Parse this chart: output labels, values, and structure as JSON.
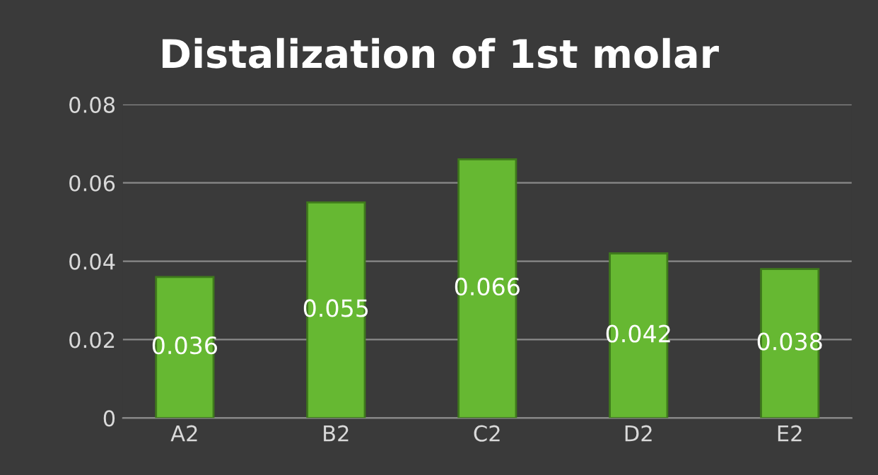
{
  "chart_data": {
    "type": "bar",
    "title": "Distalization of 1st molar",
    "categories": [
      "A2",
      "B2",
      "C2",
      "D2",
      "E2"
    ],
    "values": [
      0.036,
      0.055,
      0.066,
      0.042,
      0.038
    ],
    "color": "#66b832",
    "ylim": [
      0,
      0.08
    ],
    "yticks": [
      0,
      0.02,
      0.04,
      0.06,
      0.08
    ],
    "grid": "y",
    "data_labels": true
  }
}
